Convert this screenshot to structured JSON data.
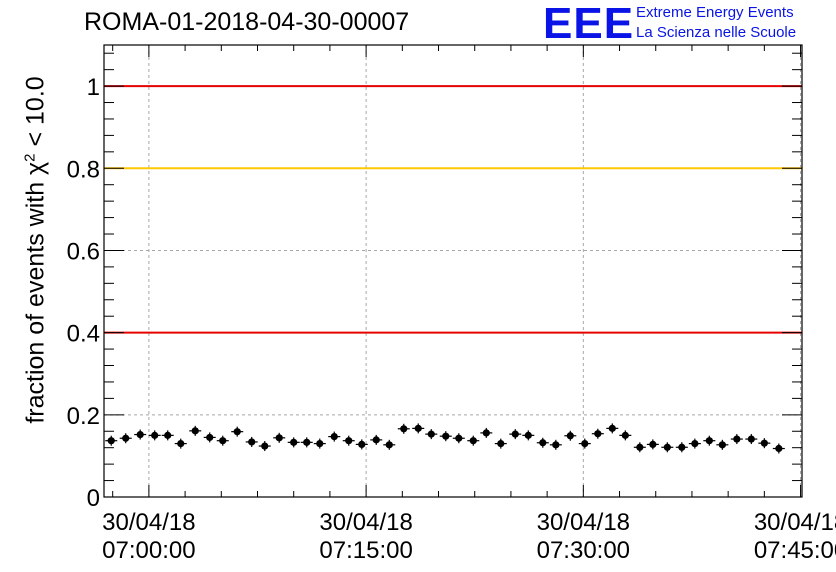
{
  "chart_data": {
    "type": "scatter",
    "title": "ROMA-01-2018-04-30-00007",
    "ylabel_prefix": "fraction of events with ",
    "ylabel_chi": "χ",
    "ylabel_sup": "2",
    "ylabel_suffix": " < 10.0",
    "xlabel": "",
    "ylim": [
      0,
      1.1
    ],
    "y_ticks": [
      0,
      0.2,
      0.4,
      0.6,
      0.8,
      1
    ],
    "y_tick_labels": [
      "0",
      "0.2",
      "0.4",
      "0.6",
      "0.8",
      "1"
    ],
    "x_ticks": [
      {
        "date": "30/04/18",
        "time": "07:00:00",
        "minutes": 0
      },
      {
        "date": "30/04/18",
        "time": "07:15:00",
        "minutes": 15
      },
      {
        "date": "30/04/18",
        "time": "07:30:00",
        "minutes": 30
      },
      {
        "date": "30/04/18",
        "time": "07:45:00",
        "minutes": 45
      }
    ],
    "xlim_minutes": [
      -3.1,
      45.1
    ],
    "grid": true,
    "reference_lines": [
      {
        "y": 1.0,
        "color": "#e60000"
      },
      {
        "y": 0.8,
        "color": "#ffc800"
      },
      {
        "y": 0.4,
        "color": "#e60000"
      }
    ],
    "series": [
      {
        "marker_color": "#000000",
        "points": [
          {
            "x": -2.6,
            "y": 0.137
          },
          {
            "x": -1.6,
            "y": 0.143
          },
          {
            "x": -0.6,
            "y": 0.152
          },
          {
            "x": 0.4,
            "y": 0.15
          },
          {
            "x": 1.3,
            "y": 0.15
          },
          {
            "x": 2.2,
            "y": 0.13
          },
          {
            "x": 3.2,
            "y": 0.161
          },
          {
            "x": 4.2,
            "y": 0.145
          },
          {
            "x": 5.1,
            "y": 0.137
          },
          {
            "x": 6.1,
            "y": 0.159
          },
          {
            "x": 7.1,
            "y": 0.134
          },
          {
            "x": 8.0,
            "y": 0.124
          },
          {
            "x": 9.0,
            "y": 0.144
          },
          {
            "x": 10.0,
            "y": 0.133
          },
          {
            "x": 10.9,
            "y": 0.133
          },
          {
            "x": 11.8,
            "y": 0.13
          },
          {
            "x": 12.8,
            "y": 0.147
          },
          {
            "x": 13.8,
            "y": 0.137
          },
          {
            "x": 14.7,
            "y": 0.128
          },
          {
            "x": 15.7,
            "y": 0.139
          },
          {
            "x": 16.6,
            "y": 0.127
          },
          {
            "x": 17.6,
            "y": 0.166
          },
          {
            "x": 18.6,
            "y": 0.167
          },
          {
            "x": 19.5,
            "y": 0.153
          },
          {
            "x": 20.5,
            "y": 0.148
          },
          {
            "x": 21.4,
            "y": 0.143
          },
          {
            "x": 22.4,
            "y": 0.137
          },
          {
            "x": 23.3,
            "y": 0.156
          },
          {
            "x": 24.3,
            "y": 0.13
          },
          {
            "x": 25.3,
            "y": 0.153
          },
          {
            "x": 26.2,
            "y": 0.15
          },
          {
            "x": 27.2,
            "y": 0.132
          },
          {
            "x": 28.1,
            "y": 0.127
          },
          {
            "x": 29.1,
            "y": 0.149
          },
          {
            "x": 30.1,
            "y": 0.13
          },
          {
            "x": 31.0,
            "y": 0.154
          },
          {
            "x": 32.0,
            "y": 0.167
          },
          {
            "x": 32.9,
            "y": 0.15
          },
          {
            "x": 33.9,
            "y": 0.121
          },
          {
            "x": 34.8,
            "y": 0.128
          },
          {
            "x": 35.8,
            "y": 0.121
          },
          {
            "x": 36.8,
            "y": 0.121
          },
          {
            "x": 37.7,
            "y": 0.13
          },
          {
            "x": 38.7,
            "y": 0.137
          },
          {
            "x": 39.6,
            "y": 0.127
          },
          {
            "x": 40.6,
            "y": 0.141
          },
          {
            "x": 41.6,
            "y": 0.141
          },
          {
            "x": 42.5,
            "y": 0.131
          },
          {
            "x": 43.5,
            "y": 0.118
          }
        ]
      }
    ]
  },
  "branding": {
    "logo_text": "EEE",
    "org_line1": "Extreme Energy Events",
    "org_line2": "La Scienza nelle Scuole",
    "color": "#0a14e6"
  }
}
